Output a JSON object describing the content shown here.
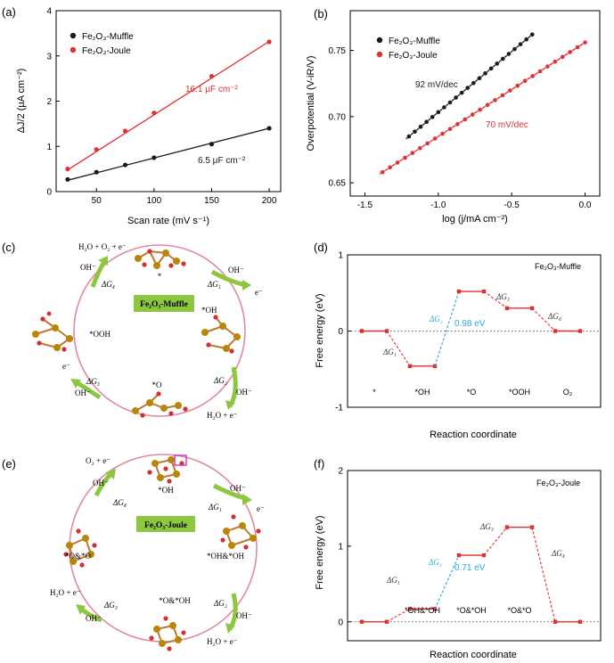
{
  "panels": {
    "a": "(a)",
    "b": "(b)",
    "c": "(c)",
    "d": "(d)",
    "e": "(e)",
    "f": "(f)"
  },
  "colors": {
    "black": "#1a1a1a",
    "red": "#e03030",
    "cyan": "#29a8e0",
    "pink": "#e0708a",
    "green": "#8dc63f",
    "fe": "#b8860b",
    "o": "#d03030",
    "magenta": "#d040c0"
  },
  "chart_data": [
    {
      "id": "a",
      "type": "scatter",
      "xlabel": "Scan rate (mV s⁻¹)",
      "ylabel": "ΔJ/2 (μA cm⁻²)",
      "xlim": [
        15,
        210
      ],
      "ylim": [
        0,
        4
      ],
      "xticks": [
        50,
        100,
        150,
        200
      ],
      "yticks": [
        0,
        1,
        2,
        3,
        4
      ],
      "legend": "top-left",
      "series": [
        {
          "name": "Fe₂O₃-Muffle",
          "color": "#1a1a1a",
          "x": [
            25,
            50,
            75,
            100,
            150,
            200
          ],
          "y": [
            0.27,
            0.43,
            0.59,
            0.75,
            1.05,
            1.4
          ],
          "fit": [
            [
              25,
              0.25
            ],
            [
              200,
              1.4
            ]
          ],
          "annotation": "6.5 μF cm⁻²"
        },
        {
          "name": "Fe₂O₃-Joule",
          "color": "#e03030",
          "x": [
            25,
            50,
            75,
            100,
            150,
            200
          ],
          "y": [
            0.5,
            0.93,
            1.34,
            1.74,
            2.55,
            3.31
          ],
          "fit": [
            [
              25,
              0.48
            ],
            [
              200,
              3.32
            ]
          ],
          "annotation": "16.1 μF cm⁻²"
        }
      ]
    },
    {
      "id": "b",
      "type": "scatter",
      "xlabel": "log (j/mA cm⁻²)",
      "ylabel": "Overpotential (V-iR/V)",
      "xlim": [
        -1.6,
        0.1
      ],
      "ylim": [
        0.64,
        0.78
      ],
      "xticks": [
        -1.5,
        -1.0,
        -0.5,
        0.0
      ],
      "xtick_labels": [
        "-1.5",
        "-1.0",
        "-0.5",
        "0.0"
      ],
      "yticks": [
        0.65,
        0.7,
        0.75
      ],
      "ytick_labels": [
        "0.65",
        "0.70",
        "0.75"
      ],
      "legend": "top-left",
      "series": [
        {
          "name": "Fe₂O₃-Muffle",
          "color": "#1a1a1a",
          "x_range": [
            -1.2,
            -0.36
          ],
          "y_range": [
            0.685,
            0.762
          ],
          "points": 22,
          "annotation": "92 mV/dec"
        },
        {
          "name": "Fe₂O₃-Joule",
          "color": "#e03030",
          "x_range": [
            -1.38,
            0.0
          ],
          "y_range": [
            0.658,
            0.756
          ],
          "points": 28,
          "annotation": "70 mV/dec"
        }
      ]
    },
    {
      "id": "d",
      "type": "line",
      "title": "Fe₂O₃-Muffle",
      "xlabel": "Reaction coordinate",
      "ylabel": "Free energy (eV)",
      "ylim": [
        -1,
        1
      ],
      "yticks": [
        -1,
        0,
        1
      ],
      "categories": [
        "*",
        "*OH",
        "*O",
        "*OOH",
        "O₂"
      ],
      "values": [
        0,
        -0.46,
        0.52,
        0.3,
        0
      ],
      "step_labels": [
        "ΔG₁",
        "ΔG₂",
        "ΔG₃",
        "ΔG₄"
      ],
      "step_colors": [
        "#e03030",
        "#29a8e0",
        "#e03030",
        "#e03030"
      ],
      "annotation": "0.98 eV"
    },
    {
      "id": "f",
      "type": "line",
      "title": "Fe₂O₃-Joule",
      "xlabel": "Reaction coordinate",
      "ylabel": "Free energy (eV)",
      "ylim": [
        -0.25,
        2
      ],
      "yticks": [
        0,
        1,
        2
      ],
      "categories": [
        "",
        "*OH&*OH",
        "*O&*OH",
        "*O&*O",
        ""
      ],
      "values": [
        0,
        0.17,
        0.88,
        1.25,
        0
      ],
      "step_labels": [
        "ΔG₁",
        "ΔG₂",
        "ΔG₃",
        "ΔG₄"
      ],
      "step_colors": [
        "#e03030",
        "#29a8e0",
        "#e03030",
        "#e03030"
      ],
      "annotation": "0.71 eV"
    }
  ],
  "cycles": [
    {
      "id": "c",
      "center_label": "Fe₂O₃-Muffle",
      "intermediates": [
        {
          "text": "*",
          "pos": "top"
        },
        {
          "text": "*OH",
          "pos": "right"
        },
        {
          "text": "*O",
          "pos": "bottom"
        },
        {
          "text": "*OOH",
          "pos": "left"
        }
      ],
      "steps": [
        {
          "dg": "ΔG₁",
          "in": "OH⁻",
          "out": "e⁻"
        },
        {
          "dg": "ΔG₂",
          "in": "OH⁻",
          "out": "H₂O + e⁻"
        },
        {
          "dg": "ΔG₃",
          "in": "OH⁻",
          "out": "e⁻"
        },
        {
          "dg": "ΔG₄",
          "in": "OH⁻",
          "out": "H₂O + O₂ + e⁻"
        }
      ]
    },
    {
      "id": "e",
      "center_label": "Fe₂O₃-Joule",
      "intermediates": [
        {
          "text": "*OH",
          "pos": "top"
        },
        {
          "text": "*OH&*OH",
          "pos": "right"
        },
        {
          "text": "*O&*OH",
          "pos": "bottom"
        },
        {
          "text": "*O&*O",
          "pos": "left"
        }
      ],
      "steps": [
        {
          "dg": "ΔG₁",
          "in": "OH⁻",
          "out": "e⁻"
        },
        {
          "dg": "ΔG₂",
          "in": "OH⁻",
          "out": "H₂O + e⁻"
        },
        {
          "dg": "ΔG₃",
          "in": "OH⁻",
          "out": "H₂O + e⁻"
        },
        {
          "dg": "ΔG₄",
          "in": "OH⁻",
          "out": "O₂ + e⁻"
        }
      ]
    }
  ]
}
